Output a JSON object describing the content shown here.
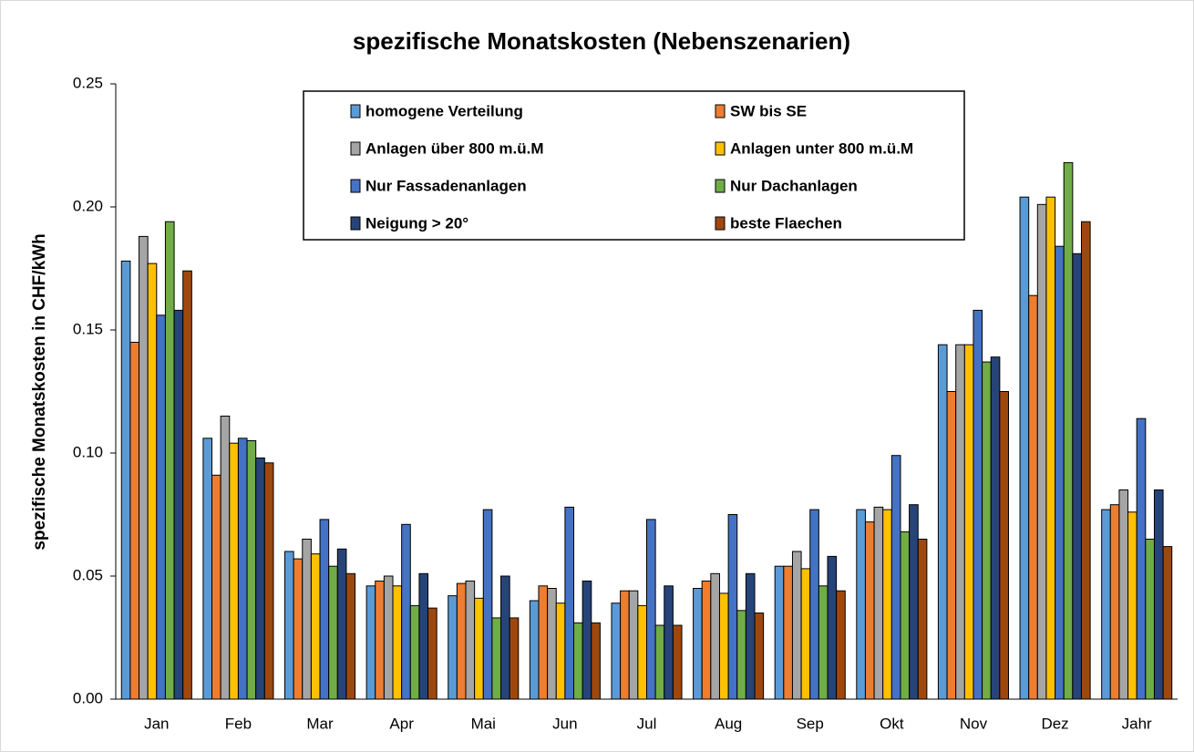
{
  "chart_data": {
    "type": "bar",
    "title": "spezifische Monatskosten (Nebenszenarien)",
    "y_label": "spezifische Monatskosten in CHF/kWh",
    "categories": [
      "Jan",
      "Feb",
      "Mar",
      "Apr",
      "Mai",
      "Jun",
      "Jul",
      "Aug",
      "Sep",
      "Okt",
      "Nov",
      "Dez",
      "Jahr"
    ],
    "series": [
      {
        "name": "homogene Verteilung",
        "color": "#5b9bd5",
        "values": [
          0.178,
          0.106,
          0.06,
          0.046,
          0.042,
          0.04,
          0.039,
          0.045,
          0.054,
          0.077,
          0.144,
          0.204,
          0.077
        ]
      },
      {
        "name": "SW bis SE",
        "color": "#ed7d31",
        "values": [
          0.145,
          0.091,
          0.057,
          0.048,
          0.047,
          0.046,
          0.044,
          0.048,
          0.054,
          0.072,
          0.125,
          0.164,
          0.079
        ]
      },
      {
        "name": "Anlagen über 800 m.ü.M",
        "color": "#a5a5a5",
        "values": [
          0.188,
          0.115,
          0.065,
          0.05,
          0.048,
          0.045,
          0.044,
          0.051,
          0.06,
          0.078,
          0.144,
          0.201,
          0.085
        ]
      },
      {
        "name": "Anlagen unter 800 m.ü.M",
        "color": "#ffc000",
        "values": [
          0.177,
          0.104,
          0.059,
          0.046,
          0.041,
          0.039,
          0.038,
          0.043,
          0.053,
          0.077,
          0.144,
          0.204,
          0.076
        ]
      },
      {
        "name": "Nur Fassadenanlagen",
        "color": "#4472c4",
        "values": [
          0.156,
          0.106,
          0.073,
          0.071,
          0.077,
          0.078,
          0.073,
          0.075,
          0.077,
          0.099,
          0.158,
          0.184,
          0.114
        ]
      },
      {
        "name": "Nur Dachanlagen",
        "color": "#70ad47",
        "values": [
          0.194,
          0.105,
          0.054,
          0.038,
          0.033,
          0.031,
          0.03,
          0.036,
          0.046,
          0.068,
          0.137,
          0.218,
          0.065
        ]
      },
      {
        "name": "Neigung > 20°",
        "color": "#264478",
        "values": [
          0.158,
          0.098,
          0.061,
          0.051,
          0.05,
          0.048,
          0.046,
          0.051,
          0.058,
          0.079,
          0.139,
          0.181,
          0.085
        ]
      },
      {
        "name": "beste Flaechen",
        "color": "#9e480e",
        "values": [
          0.174,
          0.096,
          0.051,
          0.037,
          0.033,
          0.031,
          0.03,
          0.035,
          0.044,
          0.065,
          0.125,
          0.194,
          0.062
        ]
      }
    ],
    "ylim": [
      0,
      0.25
    ],
    "yticks": [
      {
        "value": 0,
        "label": "0.00"
      },
      0.05,
      {
        "value": 0.1,
        "label": "0.10"
      },
      0.15,
      {
        "value": 0.2,
        "label": "0.20"
      },
      0.25
    ],
    "grid": false,
    "legend": "upper center"
  }
}
